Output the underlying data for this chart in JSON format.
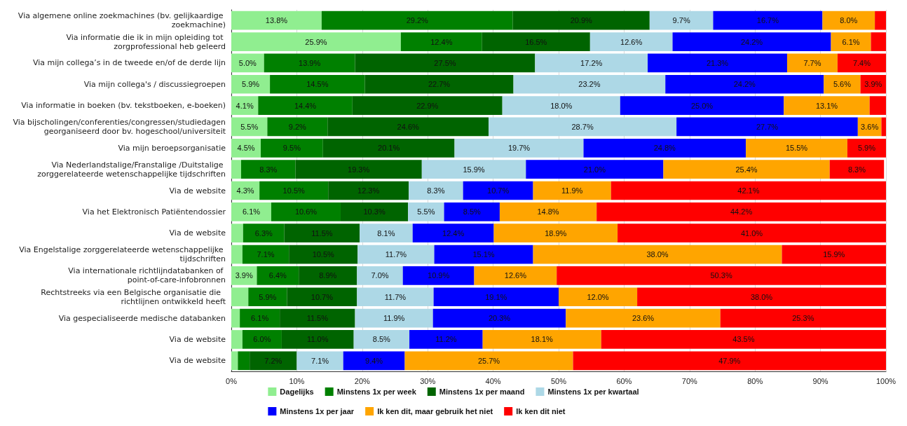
{
  "chart_data": {
    "type": "bar",
    "orientation": "horizontal",
    "stacked": true,
    "categories": [
      "Via algemene online zoekmachines (bv. gelijkaardige zoekmachine)",
      "Via informatie die ik in mijn opleiding tot zorgprofessional heb geleerd",
      "Via mijn collega’s in de tweede en/of de derde lijn",
      "Via mijn collega's / discussiegroepen",
      "Via informatie in boeken (bv. tekstboeken, e-boeken)",
      "Via bijscholingen/conferenties/congressen/studiedagen georganiseerd door bv. hogeschool/universiteit",
      "Via mijn beroepsorganisatie",
      "Via Nederlandstalige/Franstalige /Duitstalige zorggerelateerde wetenschappelijke tijdschriften",
      "Via de website",
      "Via het Elektronisch Patiëntendossier",
      "Via de website",
      "Via Engelstalige zorggerelateerde wetenschappelijke tijdschriften",
      "Via internationale richtlijndatabanken of point-of-care-infobronnen",
      "Rechtstreeks via een Belgische organisatie die  richtlijnen ontwikkeld heeft",
      "Via gespecialiseerde medische databanken",
      "Via de website",
      "Via de website"
    ],
    "series": [
      {
        "name": "Dagelijks",
        "color": "#90ee90",
        "values": [
          13.8,
          25.9,
          5.0,
          5.9,
          4.1,
          5.5,
          4.5,
          1.5,
          4.3,
          6.1,
          1.8,
          1.7,
          3.9,
          2.6,
          1.3,
          1.7,
          1.0
        ],
        "value_labels": [
          "13.8%",
          "25.9%",
          "5.0%",
          "5.9%",
          "4.1%",
          "5.5%",
          "4.5%",
          null,
          "4.3%",
          "6.1%",
          null,
          null,
          "3.9%",
          null,
          null,
          null,
          null
        ]
      },
      {
        "name": "Minstens 1x per week",
        "color": "#008000",
        "values": [
          29.2,
          12.4,
          13.9,
          14.5,
          14.4,
          9.2,
          9.5,
          8.3,
          10.5,
          10.6,
          6.3,
          7.1,
          6.4,
          5.9,
          6.1,
          6.0,
          1.8
        ],
        "value_labels": [
          "29.2%",
          "12.4%",
          "13.9%",
          "14.5%",
          "14.4%",
          "9.2%",
          "9.5%",
          "8.3%",
          "10.5%",
          "10.6%",
          "6.3%",
          "7.1%",
          "6.4%",
          "5.9%",
          "6.1%",
          "6.0%",
          null
        ]
      },
      {
        "name": "Minstens 1x per maand",
        "color": "#006400",
        "values": [
          20.9,
          16.5,
          27.5,
          22.7,
          22.9,
          24.6,
          20.1,
          19.3,
          12.3,
          10.3,
          11.5,
          10.5,
          8.9,
          10.7,
          11.5,
          11.0,
          7.2
        ],
        "value_labels": [
          "20.9%",
          "16.5%",
          "27.5%",
          "22.7%",
          "22.9%",
          "24.6%",
          "20.1%",
          "19.3%",
          "12.3%",
          "10.3%",
          "11.5%",
          "10.5%",
          "8.9%",
          "10.7%",
          "11.5%",
          "11.0%",
          "7.2%"
        ]
      },
      {
        "name": "Minstens 1x per kwartaal",
        "color": "#add8e6",
        "values": [
          9.7,
          12.6,
          17.2,
          23.2,
          18.0,
          28.7,
          19.7,
          15.9,
          8.3,
          5.5,
          8.1,
          11.7,
          7.0,
          11.7,
          11.9,
          8.5,
          7.1
        ],
        "value_labels": [
          "9.7%",
          "12.6%",
          "17.2%",
          "23.2%",
          "18.0%",
          "28.7%",
          "19.7%",
          "15.9%",
          "8.3%",
          "5.5%",
          "8.1%",
          "11.7%",
          "7.0%",
          "11.7%",
          "11.9%",
          "8.5%",
          "7.1%"
        ]
      },
      {
        "name": "Minstens 1x per jaar",
        "color": "#0000ff",
        "values": [
          16.7,
          24.2,
          21.3,
          24.2,
          25.0,
          27.7,
          24.8,
          21.0,
          10.7,
          8.5,
          12.4,
          15.1,
          10.9,
          19.1,
          20.3,
          11.2,
          9.4
        ],
        "value_labels": [
          "16.7%",
          "24.2%",
          "21.3%",
          "24.2%",
          "25.0%",
          "27.7%",
          "24.8%",
          "21.0%",
          "10.7%",
          "8.5%",
          "12.4%",
          "15.1%",
          "10.9%",
          "19.1%",
          "20.3%",
          "11.2%",
          "9.4%"
        ]
      },
      {
        "name": "Ik ken dit, maar gebruik het niet",
        "color": "#ffa500",
        "values": [
          8.0,
          6.1,
          7.7,
          5.6,
          13.1,
          3.6,
          15.5,
          25.4,
          11.9,
          14.8,
          18.9,
          38.0,
          12.6,
          12.0,
          23.6,
          18.1,
          25.7
        ],
        "value_labels": [
          "8.0%",
          "6.1%",
          "7.7%",
          "5.6%",
          "13.1%",
          "3.6%",
          "15.5%",
          "25.4%",
          "11.9%",
          "14.8%",
          "18.9%",
          "38.0%",
          "12.6%",
          "12.0%",
          "23.6%",
          "18.1%",
          "25.7%"
        ]
      },
      {
        "name": "Ik ken dit niet",
        "color": "#ff0000",
        "values": [
          1.7,
          2.3,
          7.4,
          3.9,
          2.5,
          0.7,
          5.9,
          8.3,
          42.1,
          44.2,
          41.0,
          15.9,
          50.3,
          38.0,
          25.3,
          43.5,
          47.9
        ],
        "value_labels": [
          null,
          null,
          "7.4%",
          "3.9%",
          null,
          null,
          "5.9%",
          "8.3%",
          "42.1%",
          "44.2%",
          "41.0%",
          "15.9%",
          "50.3%",
          "38.0%",
          "25.3%",
          "43.5%",
          "47.9%"
        ]
      }
    ],
    "xlim": [
      0,
      100
    ],
    "xticks": [
      {
        "value": 0,
        "label": "0%"
      },
      {
        "value": 10,
        "label": "10%"
      },
      {
        "value": 20,
        "label": "20%"
      },
      {
        "value": 30,
        "label": "30%"
      },
      {
        "value": 40,
        "label": "40%"
      },
      {
        "value": 50,
        "label": "50%"
      },
      {
        "value": 60,
        "label": "60%"
      },
      {
        "value": 70,
        "label": "70%"
      },
      {
        "value": 80,
        "label": "80%"
      },
      {
        "value": 90,
        "label": "90%"
      },
      {
        "value": 100,
        "label": "100%"
      }
    ],
    "grid": "x",
    "legend": "bottom"
  }
}
